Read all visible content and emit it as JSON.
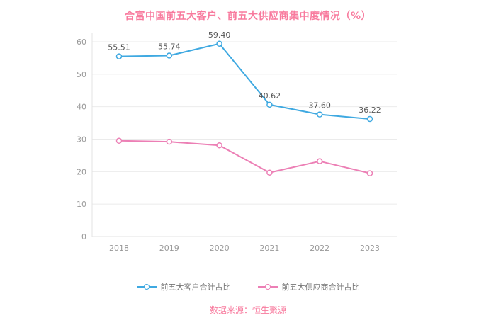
{
  "title": "合富中国前五大客户、前五大供应商集中度情况（%）",
  "footer": "数据来源：恒生聚源",
  "colors": {
    "title": "#f87b9e",
    "footer": "#f87b9e",
    "grid": "#ebebeb",
    "axis_line": "#e3e3e3",
    "tick_text": "#999999",
    "data_label": "#555555",
    "customer_series": "#3fa9e1",
    "supplier_series": "#ec7fb5"
  },
  "chart_data": {
    "type": "line",
    "title": "合富中国前五大客户、前五大供应商集中度情况（%）",
    "categories": [
      "2018",
      "2019",
      "2020",
      "2021",
      "2022",
      "2023"
    ],
    "series": [
      {
        "name": "前五大客户合计占比",
        "color": "#3fa9e1",
        "values": [
          55.51,
          55.74,
          59.4,
          40.62,
          37.6,
          36.22
        ],
        "labels": [
          "55.51",
          "55.74",
          "59.40",
          "40.62",
          "37.60",
          "36.22"
        ]
      },
      {
        "name": "前五大供应商合计占比",
        "color": "#ec7fb5",
        "values": [
          29.5,
          29.2,
          28.1,
          19.7,
          23.2,
          19.5
        ]
      }
    ],
    "ylim": [
      0,
      60
    ],
    "yticks": [
      0,
      10,
      20,
      30,
      40,
      50,
      60
    ],
    "grid": true,
    "legend_position": "bottom",
    "xlabel": "",
    "ylabel": ""
  }
}
